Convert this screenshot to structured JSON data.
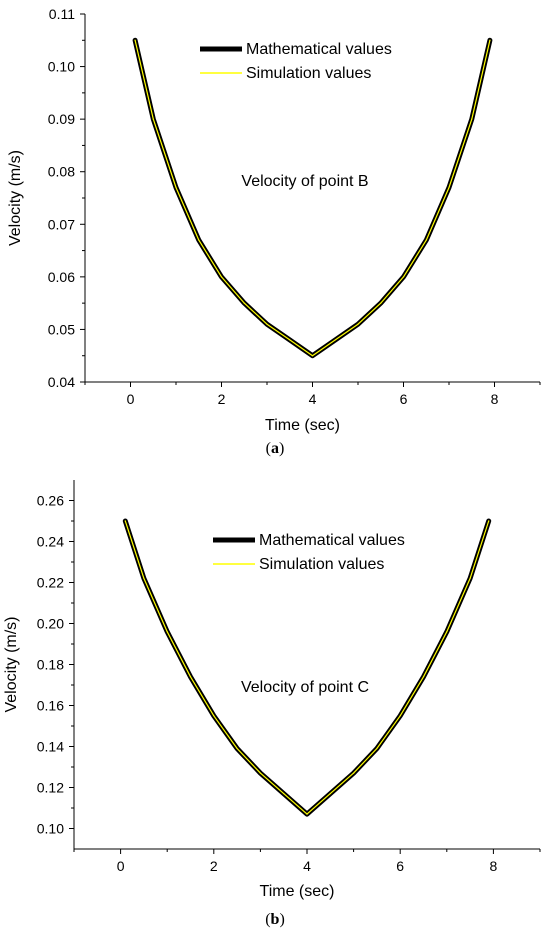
{
  "chart_data": [
    {
      "type": "line",
      "id": "a",
      "annotation": "Velocity of point B",
      "xlabel": "Time (sec)",
      "ylabel": "Velocity (m/s)",
      "xlim": [
        -1,
        9
      ],
      "ylim": [
        0.04,
        0.11
      ],
      "xticks": [
        0,
        2,
        4,
        6,
        8
      ],
      "yticks": [
        0.04,
        0.05,
        0.06,
        0.07,
        0.08,
        0.09,
        0.1,
        0.11
      ],
      "ytick_labels": [
        "0.04",
        "0.05",
        "0.06",
        "0.07",
        "0.08",
        "0.09",
        "0.10",
        "0.11"
      ],
      "legend_position": "top-center",
      "series": [
        {
          "name": "Mathematical values",
          "color": "#000000",
          "x": [
            0.1,
            0.5,
            1.0,
            1.5,
            2.0,
            2.5,
            3.0,
            3.5,
            4.0,
            4.5,
            5.0,
            5.5,
            6.0,
            6.5,
            7.0,
            7.5,
            7.9
          ],
          "values": [
            0.105,
            0.09,
            0.077,
            0.067,
            0.06,
            0.055,
            0.051,
            0.048,
            0.045,
            0.048,
            0.051,
            0.055,
            0.06,
            0.067,
            0.077,
            0.09,
            0.105
          ]
        },
        {
          "name": "Simulation values",
          "color": "#ffff00",
          "x": [
            0.1,
            0.5,
            1.0,
            1.5,
            2.0,
            2.5,
            3.0,
            3.5,
            4.0,
            4.5,
            5.0,
            5.5,
            6.0,
            6.5,
            7.0,
            7.5,
            7.9
          ],
          "values": [
            0.105,
            0.09,
            0.077,
            0.067,
            0.06,
            0.055,
            0.051,
            0.048,
            0.045,
            0.048,
            0.051,
            0.055,
            0.06,
            0.067,
            0.077,
            0.09,
            0.105
          ]
        }
      ],
      "caption": "a"
    },
    {
      "type": "line",
      "id": "b",
      "annotation": "Velocity of point C",
      "xlabel": "Time (sec)",
      "ylabel": "Velocity (m/s)",
      "xlim": [
        -1,
        9
      ],
      "ylim": [
        0.09,
        0.27
      ],
      "xticks": [
        0,
        2,
        4,
        6,
        8
      ],
      "yticks": [
        0.1,
        0.12,
        0.14,
        0.16,
        0.18,
        0.2,
        0.22,
        0.24,
        0.26
      ],
      "ytick_labels": [
        "0.10",
        "0.12",
        "0.14",
        "0.16",
        "0.18",
        "0.20",
        "0.22",
        "0.24",
        "0.26"
      ],
      "legend_position": "top-center",
      "series": [
        {
          "name": "Mathematical values",
          "color": "#000000",
          "x": [
            0.1,
            0.5,
            1.0,
            1.5,
            2.0,
            2.5,
            3.0,
            3.5,
            4.0,
            4.5,
            5.0,
            5.5,
            6.0,
            6.5,
            7.0,
            7.5,
            7.9
          ],
          "values": [
            0.25,
            0.222,
            0.196,
            0.174,
            0.155,
            0.139,
            0.127,
            0.117,
            0.107,
            0.117,
            0.127,
            0.139,
            0.155,
            0.174,
            0.196,
            0.222,
            0.25
          ]
        },
        {
          "name": "Simulation values",
          "color": "#ffff00",
          "x": [
            0.1,
            0.5,
            1.0,
            1.5,
            2.0,
            2.5,
            3.0,
            3.5,
            4.0,
            4.5,
            5.0,
            5.5,
            6.0,
            6.5,
            7.0,
            7.5,
            7.9
          ],
          "values": [
            0.25,
            0.222,
            0.196,
            0.174,
            0.155,
            0.139,
            0.127,
            0.117,
            0.107,
            0.117,
            0.127,
            0.139,
            0.155,
            0.174,
            0.196,
            0.222,
            0.25
          ]
        }
      ],
      "caption": "b"
    }
  ]
}
